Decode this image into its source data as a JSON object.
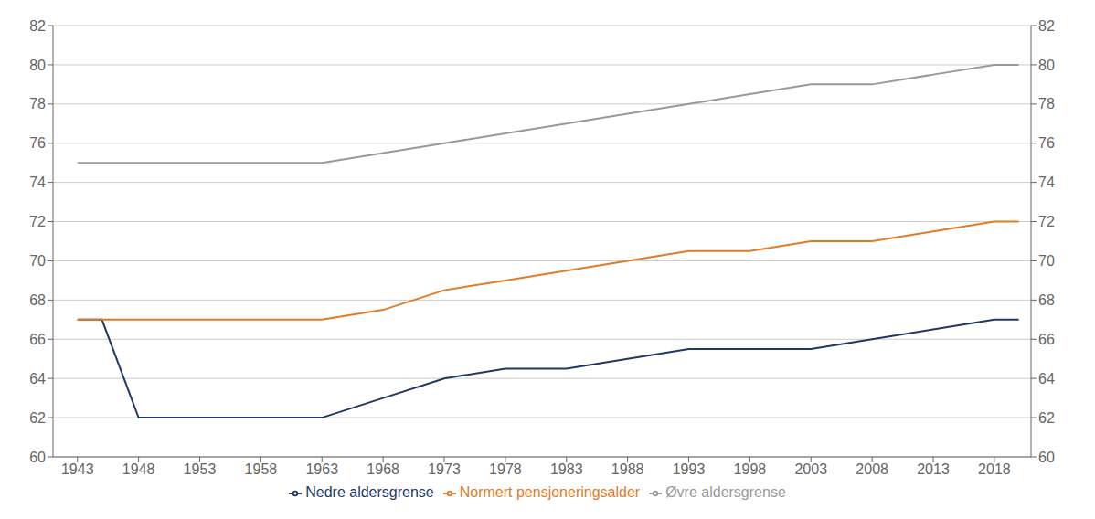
{
  "chart_data": {
    "type": "line",
    "xlim": [
      1941,
      2021
    ],
    "xticks": [
      1943,
      1948,
      1953,
      1958,
      1963,
      1968,
      1973,
      1978,
      1983,
      1988,
      1993,
      1998,
      2003,
      2008,
      2013,
      2018
    ],
    "ylim": [
      60,
      82
    ],
    "yticks": [
      60,
      62,
      64,
      66,
      68,
      70,
      72,
      74,
      76,
      78,
      80,
      82
    ],
    "y2lim": [
      60,
      82
    ],
    "y2ticks": [
      60,
      62,
      64,
      66,
      68,
      70,
      72,
      74,
      76,
      78,
      80,
      82
    ],
    "grid": "y",
    "legend": "bottom",
    "series": [
      {
        "name": "Nedre aldersgrense",
        "color": "#1f3864",
        "x": [
          1943,
          1945,
          1948,
          1953,
          1958,
          1963,
          1968,
          1973,
          1978,
          1983,
          1988,
          1993,
          1998,
          2003,
          2008,
          2013,
          2018,
          2020
        ],
        "values": [
          67.0,
          67.0,
          62.0,
          62.0,
          62.0,
          62.0,
          63.0,
          64.0,
          64.5,
          64.5,
          65.0,
          65.5,
          65.5,
          65.5,
          66.0,
          66.5,
          67.0,
          67.0
        ]
      },
      {
        "name": "Normert pensjoneringsalder",
        "color": "#e07b28",
        "x": [
          1943,
          1948,
          1953,
          1958,
          1963,
          1968,
          1973,
          1978,
          1983,
          1988,
          1993,
          1998,
          2003,
          2008,
          2013,
          2018,
          2020
        ],
        "values": [
          67.0,
          67.0,
          67.0,
          67.0,
          67.0,
          67.5,
          68.5,
          69.0,
          69.5,
          70.0,
          70.5,
          70.5,
          71.0,
          71.0,
          71.5,
          72.0,
          72.0
        ]
      },
      {
        "name": "Øvre aldersgrense",
        "color": "#999999",
        "x": [
          1943,
          1948,
          1953,
          1958,
          1963,
          1968,
          1973,
          1978,
          1983,
          1988,
          1993,
          1998,
          2003,
          2008,
          2013,
          2018,
          2020
        ],
        "values": [
          75.0,
          75.0,
          75.0,
          75.0,
          75.0,
          75.5,
          76.0,
          76.5,
          77.0,
          77.5,
          78.0,
          78.5,
          79.0,
          79.0,
          79.5,
          80.0,
          80.0
        ]
      }
    ]
  }
}
